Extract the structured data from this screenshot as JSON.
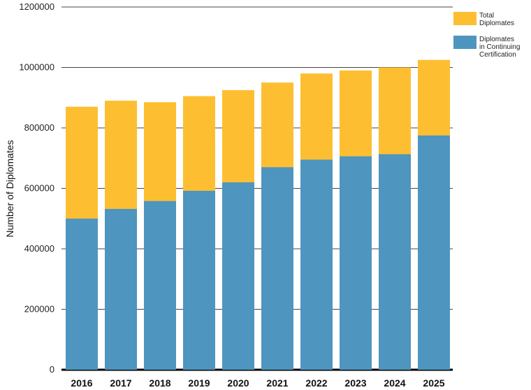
{
  "chart_data": {
    "type": "bar",
    "stacked": false,
    "overlapping": true,
    "title": "",
    "xlabel": "",
    "ylabel": "Number of Diplomates",
    "ylim": [
      0,
      1200000
    ],
    "yticks": [
      0,
      200000,
      400000,
      600000,
      800000,
      1000000,
      1200000
    ],
    "ytick_labels": [
      "0",
      "200000",
      "400000",
      "600000",
      "800000",
      "1000000",
      "1200000"
    ],
    "categories": [
      "2016",
      "2017",
      "2018",
      "2019",
      "2020",
      "2021",
      "2022",
      "2023",
      "2024",
      "2025"
    ],
    "series": [
      {
        "name": "Total Diplomates",
        "legend_lines": [
          "Total",
          "Diplomates"
        ],
        "color": "#FDBF31",
        "values": [
          870000,
          890000,
          885000,
          905000,
          925000,
          950000,
          980000,
          990000,
          1000000,
          1025000
        ]
      },
      {
        "name": "Diplomates in Continuing Certification",
        "legend_lines": [
          "Diplomates",
          "in Continuing",
          "Certification"
        ],
        "color": "#4E95BF",
        "values": [
          500000,
          532000,
          558000,
          592000,
          620000,
          670000,
          695000,
          706000,
          713000,
          775000
        ]
      }
    ],
    "grid": true,
    "legend_position": "top-right"
  }
}
